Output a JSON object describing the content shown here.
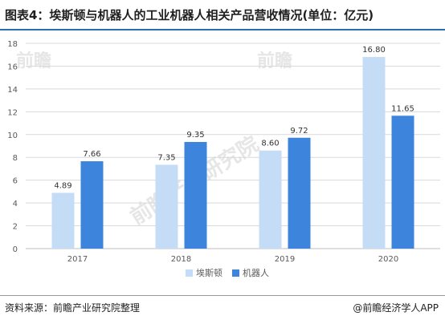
{
  "title": "图表4：埃斯顿与机器人的工业机器人相关产品营收情况(单位：亿元)",
  "source": "资料来源：前瞻产业研究院整理",
  "credit": "@前瞻经济学人APP",
  "watermarks": [
    "前瞻",
    "前瞻产业研究院",
    "前瞻"
  ],
  "colors": {
    "series1": "#c5dcf7",
    "series2": "#3d84dc",
    "grid": "#d9d9d9",
    "axis_text": "#595959",
    "title_rule": "#2b6cb0"
  },
  "chart_data": {
    "type": "bar",
    "title": "图表4：埃斯顿与机器人的工业机器人相关产品营收情况(单位：亿元)",
    "categories": [
      "2017",
      "2018",
      "2019",
      "2020"
    ],
    "series": [
      {
        "name": "埃斯顿",
        "values": [
          4.89,
          7.35,
          8.6,
          16.8
        ],
        "labels": [
          "4.89",
          "7.35",
          "8.60",
          "16.80"
        ]
      },
      {
        "name": "机器人",
        "values": [
          7.66,
          9.35,
          9.72,
          11.65
        ],
        "labels": [
          "7.66",
          "9.35",
          "9.72",
          "11.65"
        ]
      }
    ],
    "ylim": [
      0,
      18
    ],
    "yticks": [
      "0",
      "2",
      "4",
      "6",
      "8",
      "10",
      "12",
      "14",
      "16",
      "18"
    ],
    "grid": true,
    "legend_position": "bottom-center",
    "xlabel": "",
    "ylabel": ""
  }
}
